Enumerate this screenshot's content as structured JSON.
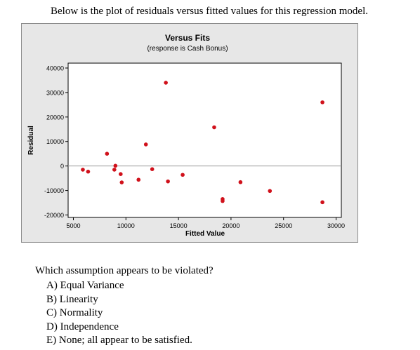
{
  "intro_text": "Below is the plot of residuals versus fitted values for this regression model.",
  "chart_data": {
    "type": "scatter",
    "title": "Versus Fits",
    "subtitle": "(response is Cash Bonus)",
    "xlabel": "Fitted Value",
    "ylabel": "Residual",
    "xlim": [
      4500,
      30500
    ],
    "ylim": [
      -21000,
      42000
    ],
    "x_ticks": [
      5000,
      10000,
      15000,
      20000,
      25000,
      30000
    ],
    "y_ticks": [
      -20000,
      -10000,
      0,
      10000,
      20000,
      30000,
      40000
    ],
    "reference_line_y": 0,
    "grid": false,
    "point_color": "#d0111b",
    "background_color": "#e7e7e7",
    "points": [
      {
        "x": 5900,
        "y": -1500
      },
      {
        "x": 6400,
        "y": -2300
      },
      {
        "x": 8200,
        "y": 5000
      },
      {
        "x": 8900,
        "y": -1500
      },
      {
        "x": 9000,
        "y": 100
      },
      {
        "x": 9500,
        "y": -3300
      },
      {
        "x": 9600,
        "y": -6700
      },
      {
        "x": 11200,
        "y": -5600
      },
      {
        "x": 11900,
        "y": 8800
      },
      {
        "x": 12500,
        "y": -1300
      },
      {
        "x": 13800,
        "y": 34000
      },
      {
        "x": 14000,
        "y": -6300
      },
      {
        "x": 15400,
        "y": -3600
      },
      {
        "x": 18400,
        "y": 15800
      },
      {
        "x": 19200,
        "y": -13500
      },
      {
        "x": 19200,
        "y": -14300
      },
      {
        "x": 20900,
        "y": -6600
      },
      {
        "x": 23700,
        "y": -10200
      },
      {
        "x": 28700,
        "y": 26000
      },
      {
        "x": 28700,
        "y": -14800
      }
    ]
  },
  "question": {
    "prompt": "Which assumption appears to be violated?",
    "options": [
      "A) Equal Variance",
      "B) Linearity",
      "C) Normality",
      "D) Independence",
      "E) None; all appear to be satisfied."
    ]
  }
}
